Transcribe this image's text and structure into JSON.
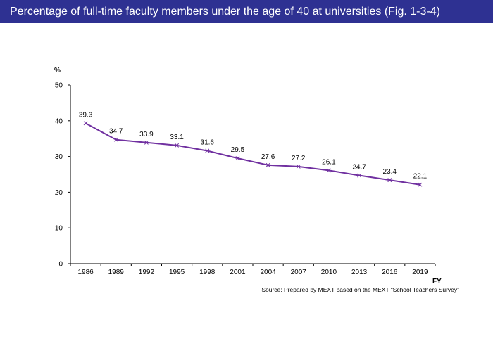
{
  "header": {
    "title": "Percentage of full-time faculty members under the age of 40 at universities (Fig. 1-3-4)"
  },
  "colors": {
    "title_bar": "#2e3192",
    "series_line": "#7030a0"
  },
  "chart_data": {
    "type": "line",
    "title": "Percentage of full-time faculty members under the age of 40 at universities (Fig. 1-3-4)",
    "ylabel": "%",
    "xlabel": "FY",
    "ylim": [
      0,
      50
    ],
    "yticks": [
      0,
      10,
      20,
      30,
      40,
      50
    ],
    "grid": false,
    "legend": "none",
    "categories": [
      "1986",
      "1989",
      "1992",
      "1995",
      "1998",
      "2001",
      "2004",
      "2007",
      "2010",
      "2013",
      "2016",
      "2019"
    ],
    "series": [
      {
        "values": [
          39.3,
          34.7,
          33.9,
          33.1,
          31.6,
          29.5,
          27.6,
          27.2,
          26.1,
          24.7,
          23.4,
          22.1
        ],
        "color": "#7030a0",
        "marker": "x"
      }
    ],
    "data_labels": [
      "39.3",
      "34.7",
      "33.9",
      "33.1",
      "31.6",
      "29.5",
      "27.6",
      "27.2",
      "26.1",
      "24.7",
      "23.4",
      "22.1"
    ]
  },
  "footer": {
    "source": "Source: Prepared by MEXT based on the MEXT “School Teachers Survey”"
  }
}
